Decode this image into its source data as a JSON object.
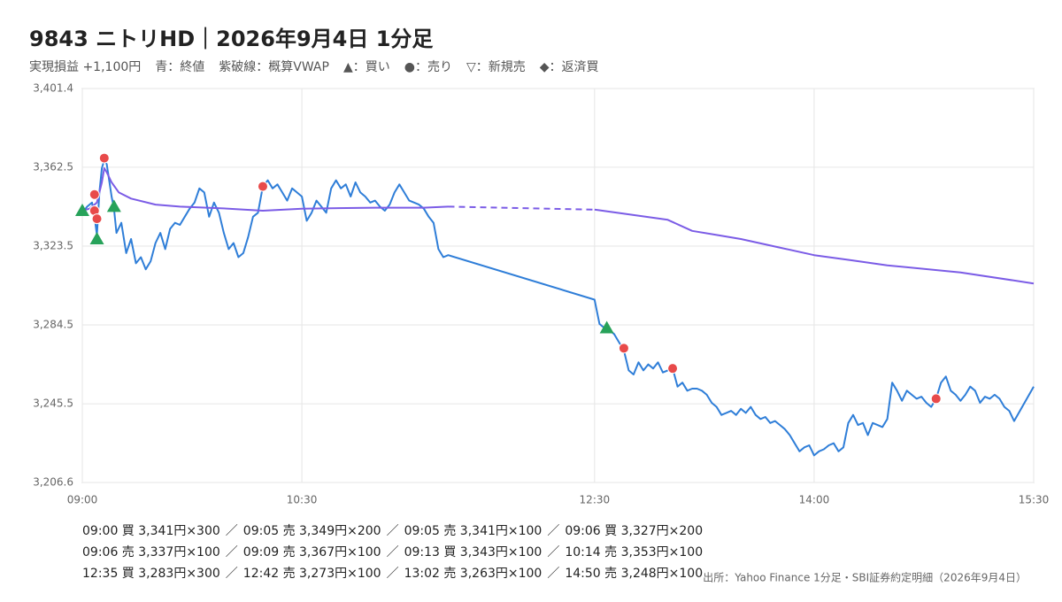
{
  "chart_data": {
    "type": "line",
    "title": "9843 ニトリHD｜2026年9月4日 1分足",
    "legend_items": [
      "実現損益 +1,100円",
      "青：終値",
      "紫破線：概算VWAP",
      "▲：買い",
      "●：売り",
      "▽：新規売",
      "◆：返済買"
    ],
    "source": "出所：Yahoo Finance 1分足・SBI証券約定明細（2026年9月4日）",
    "xlim": [
      "09:00",
      "15:30"
    ],
    "xticks": [
      "09:00",
      "10:30",
      "12:30",
      "14:00",
      "15:30"
    ],
    "ylim": [
      3206.6,
      3401.4
    ],
    "yticks": [
      {
        "value": 3206.6,
        "label": "3,206.6"
      },
      {
        "value": 3245.5,
        "label": "3,245.5"
      },
      {
        "value": 3284.5,
        "label": "3,284.5"
      },
      {
        "value": 3323.5,
        "label": "3,323.5"
      },
      {
        "value": 3362.5,
        "label": "3,362.5"
      },
      {
        "value": 3401.4,
        "label": "3,401.4"
      }
    ],
    "grid": true,
    "series": [
      {
        "name": "終値",
        "color": "#2f7ed8",
        "gap_dash": false,
        "x": [
          "09:00",
          "09:02",
          "09:04",
          "09:05",
          "09:06",
          "09:07",
          "09:08",
          "09:09",
          "09:10",
          "09:12",
          "09:13",
          "09:14",
          "09:16",
          "09:18",
          "09:20",
          "09:22",
          "09:24",
          "09:26",
          "09:28",
          "09:30",
          "09:32",
          "09:34",
          "09:36",
          "09:38",
          "09:40",
          "09:42",
          "09:44",
          "09:46",
          "09:48",
          "09:50",
          "09:52",
          "09:54",
          "09:56",
          "09:58",
          "10:00",
          "10:02",
          "10:04",
          "10:06",
          "10:08",
          "10:10",
          "10:12",
          "10:14",
          "10:16",
          "10:18",
          "10:20",
          "10:22",
          "10:24",
          "10:26",
          "10:28",
          "10:30",
          "10:32",
          "10:34",
          "10:36",
          "10:38",
          "10:40",
          "10:42",
          "10:44",
          "10:46",
          "10:48",
          "10:50",
          "10:52",
          "10:54",
          "10:56",
          "10:58",
          "11:00",
          "11:02",
          "11:04",
          "11:06",
          "11:08",
          "11:10",
          "11:12",
          "11:14",
          "11:16",
          "11:18",
          "11:20",
          "11:22",
          "11:24",
          "11:26",
          "11:28",
          "11:30",
          "12:30",
          "12:32",
          "12:34",
          "12:36",
          "12:38",
          "12:40",
          "12:42",
          "12:44",
          "12:46",
          "12:48",
          "12:50",
          "12:52",
          "12:54",
          "12:56",
          "12:58",
          "13:00",
          "13:02",
          "13:04",
          "13:06",
          "13:08",
          "13:10",
          "13:12",
          "13:14",
          "13:16",
          "13:18",
          "13:20",
          "13:22",
          "13:24",
          "13:26",
          "13:28",
          "13:30",
          "13:32",
          "13:34",
          "13:36",
          "13:38",
          "13:40",
          "13:42",
          "13:44",
          "13:46",
          "13:48",
          "13:50",
          "13:52",
          "13:54",
          "13:56",
          "13:58",
          "14:00",
          "14:02",
          "14:04",
          "14:06",
          "14:08",
          "14:10",
          "14:12",
          "14:14",
          "14:16",
          "14:18",
          "14:20",
          "14:22",
          "14:24",
          "14:26",
          "14:28",
          "14:30",
          "14:32",
          "14:34",
          "14:36",
          "14:38",
          "14:40",
          "14:42",
          "14:44",
          "14:46",
          "14:48",
          "14:50",
          "14:52",
          "14:54",
          "14:56",
          "14:58",
          "15:00",
          "15:02",
          "15:04",
          "15:06",
          "15:08",
          "15:10",
          "15:12",
          "15:14",
          "15:16",
          "15:18",
          "15:20",
          "15:22",
          "15:30"
        ],
        "values": [
          3340,
          3343,
          3345,
          3338,
          3329,
          3350,
          3362,
          3366,
          3364,
          3348,
          3342,
          3330,
          3335,
          3320,
          3327,
          3315,
          3318,
          3312,
          3316,
          3325,
          3330,
          3322,
          3332,
          3335,
          3334,
          3338,
          3342,
          3345,
          3352,
          3350,
          3338,
          3345,
          3340,
          3330,
          3322,
          3325,
          3318,
          3320,
          3328,
          3338,
          3340,
          3353,
          3356,
          3352,
          3354,
          3350,
          3346,
          3352,
          3350,
          3348,
          3336,
          3340,
          3346,
          3343,
          3340,
          3352,
          3356,
          3352,
          3354,
          3348,
          3355,
          3350,
          3348,
          3345,
          3346,
          3343,
          3341,
          3344,
          3350,
          3354,
          3350,
          3346,
          3345,
          3344,
          3342,
          3338,
          3335,
          3322,
          3318,
          3319,
          3297,
          3285,
          3283,
          3282,
          3280,
          3276,
          3272,
          3262,
          3260,
          3266,
          3262,
          3265,
          3263,
          3266,
          3261,
          3262,
          3263,
          3254,
          3256,
          3252,
          3253,
          3253,
          3252,
          3250,
          3246,
          3244,
          3240,
          3241,
          3242,
          3240,
          3243,
          3241,
          3244,
          3240,
          3238,
          3239,
          3236,
          3237,
          3235,
          3233,
          3230,
          3226,
          3222,
          3224,
          3225,
          3220,
          3222,
          3223,
          3225,
          3226,
          3222,
          3224,
          3236,
          3240,
          3235,
          3236,
          3230,
          3236,
          3235,
          3234,
          3238,
          3256,
          3252,
          3247,
          3252,
          3250,
          3248,
          3249,
          3246,
          3244,
          3248,
          3256,
          3259,
          3252,
          3250,
          3247,
          3250,
          3254,
          3252,
          3246,
          3249,
          3248,
          3250,
          3248,
          3244,
          3242,
          3237,
          3254
        ]
      },
      {
        "name": "概算VWAP",
        "color": "#7b5ce6",
        "gap_dash": true,
        "x": [
          "09:00",
          "09:03",
          "09:06",
          "09:08",
          "09:09",
          "09:10",
          "09:12",
          "09:15",
          "09:20",
          "09:30",
          "09:40",
          "10:00",
          "10:14",
          "10:30",
          "11:00",
          "11:20",
          "11:30",
          "12:30",
          "12:45",
          "13:00",
          "13:10",
          "13:20",
          "13:30",
          "13:45",
          "14:00",
          "14:15",
          "14:30",
          "15:00",
          "15:30"
        ],
        "values": [
          3341,
          3342,
          3345,
          3355,
          3362,
          3360,
          3355,
          3350,
          3347,
          3344,
          3343,
          3342,
          3341,
          3342,
          3342.5,
          3342.5,
          3343,
          3341.5,
          3339,
          3336.5,
          3331,
          3329,
          3327,
          3323,
          3319,
          3316.5,
          3314,
          3310.5,
          3305
        ]
      }
    ],
    "markers": {
      "triangle": "#27a25a",
      "circle": "#e84a4a"
    },
    "trade_separator": "／",
    "trades": [
      {
        "time": "09:00",
        "price": 3341,
        "marker": "triangle",
        "label": "09:00 買 3,341円×300"
      },
      {
        "time": "09:05",
        "price": 3349,
        "marker": "circle",
        "label": "09:05 売 3,349円×200"
      },
      {
        "time": "09:05",
        "price": 3341,
        "marker": "circle",
        "label": "09:05 売 3,341円×100"
      },
      {
        "time": "09:06",
        "price": 3327,
        "marker": "triangle",
        "label": "09:06 買 3,327円×200"
      },
      {
        "time": "09:06",
        "price": 3337,
        "marker": "circle",
        "label": "09:06 売 3,337円×100"
      },
      {
        "time": "09:09",
        "price": 3367,
        "marker": "circle",
        "label": "09:09 売 3,367円×100"
      },
      {
        "time": "09:13",
        "price": 3343,
        "marker": "triangle",
        "label": "09:13 買 3,343円×100"
      },
      {
        "time": "10:14",
        "price": 3353,
        "marker": "circle",
        "label": "10:14 売 3,353円×100"
      },
      {
        "time": "12:35",
        "price": 3283,
        "marker": "triangle",
        "label": "12:35 買 3,283円×300"
      },
      {
        "time": "12:42",
        "price": 3273,
        "marker": "circle",
        "label": "12:42 売 3,273円×100"
      },
      {
        "time": "13:02",
        "price": 3263,
        "marker": "circle",
        "label": "13:02 売 3,263円×100"
      },
      {
        "time": "14:50",
        "price": 3248,
        "marker": "circle",
        "label": "14:50 売 3,248円×100"
      }
    ]
  }
}
